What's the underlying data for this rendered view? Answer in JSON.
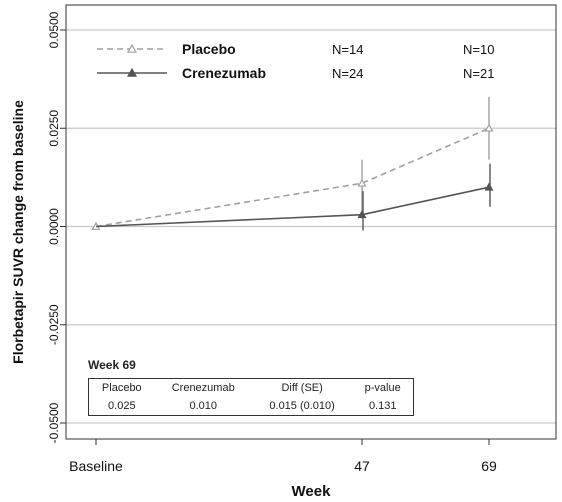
{
  "chart_data": {
    "type": "line",
    "ylabel": "Florbetapir SUVR change from baseline",
    "xlabel": "Week",
    "categories": [
      "Baseline",
      "47",
      "69"
    ],
    "y_ticks": [
      "0.0500",
      "0.0250",
      "0.0000",
      "-0.0250",
      "-0.0500"
    ],
    "ylim": [
      -0.05,
      0.05
    ],
    "grid": true,
    "legend_position": "top-left",
    "series": [
      {
        "name": "Placebo",
        "marker": "open-triangle",
        "line_style": "dashed",
        "color": "#a0a0a0",
        "values": [
          0.0,
          0.011,
          0.025
        ],
        "ci_low": [
          null,
          0.002,
          0.017
        ],
        "ci_high": [
          null,
          0.017,
          0.033
        ],
        "n_labels": [
          "N=14",
          "N=10"
        ]
      },
      {
        "name": "Crenezumab",
        "marker": "filled-triangle",
        "line_style": "solid",
        "color": "#555555",
        "values": [
          0.0,
          0.003,
          0.01
        ],
        "ci_low": [
          null,
          -0.001,
          0.005
        ],
        "ci_high": [
          null,
          0.009,
          0.016
        ],
        "n_labels": [
          "N=24",
          "N=21"
        ]
      }
    ],
    "annotation_table": {
      "title": "Week 69",
      "headers": [
        "Placebo",
        "Crenezumab",
        "Diff (SE)",
        "p-value"
      ],
      "values": [
        "0.025",
        "0.010",
        "0.015 (0.010)",
        "0.131"
      ]
    }
  }
}
